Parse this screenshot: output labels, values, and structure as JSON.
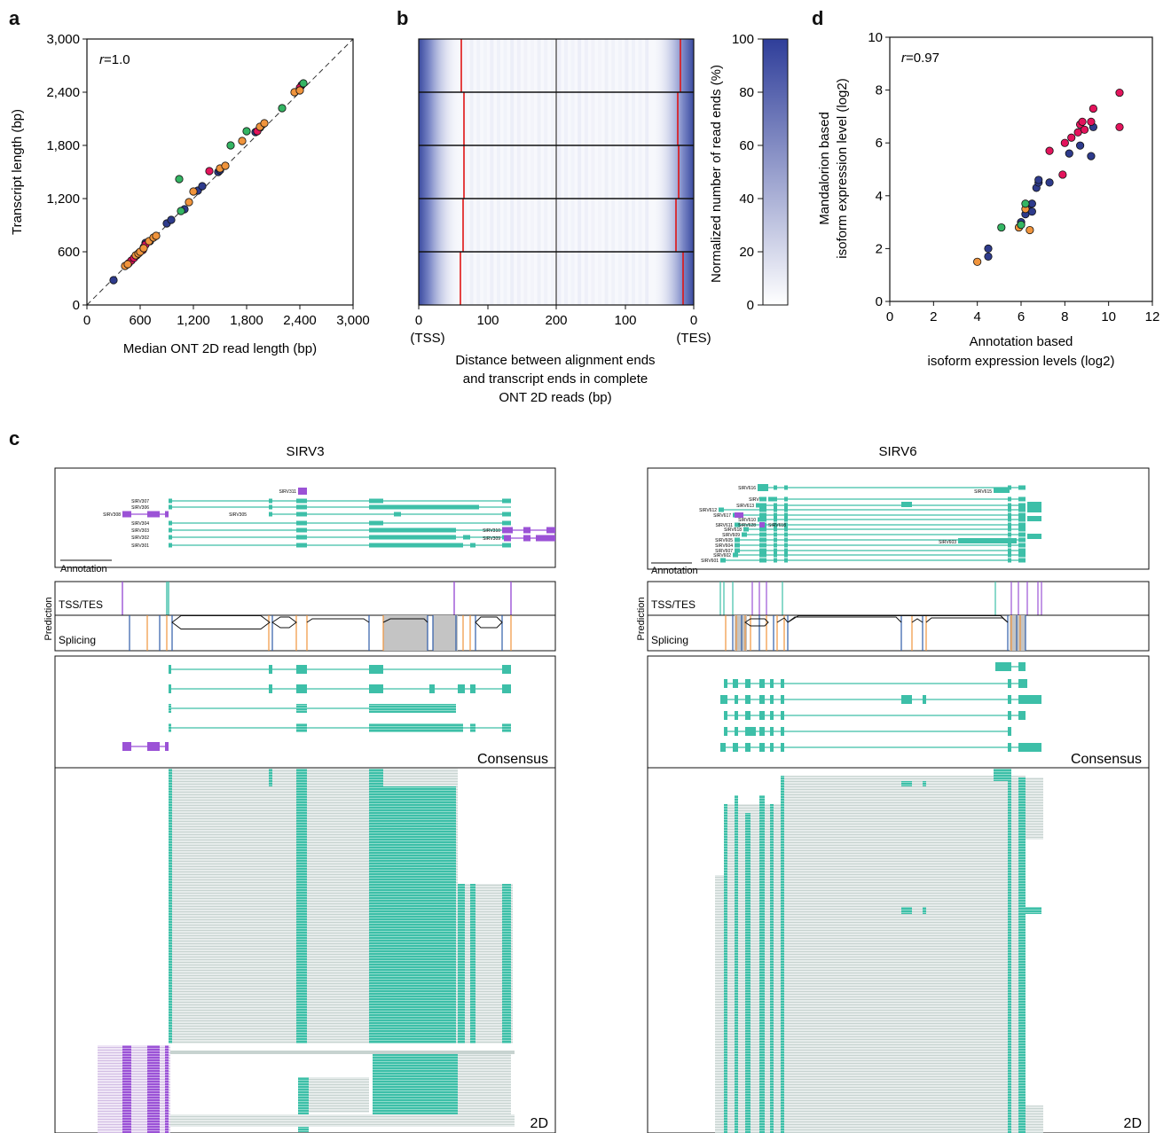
{
  "panels": {
    "a": "a",
    "b": "b",
    "c": "c",
    "d": "d"
  },
  "colors": {
    "teal": "#3dbfa8",
    "purple": "#9b52d6",
    "navy": "#2e3b8c",
    "pink": "#e3145c",
    "orange": "#f0943c",
    "green": "#34b563",
    "red": "#e01414",
    "blue_heat": "#3a4aa0",
    "read_gray": "#cfd9d6"
  },
  "chart_data": [
    {
      "type": "scatter",
      "id": "a",
      "annotation": "r=1.0",
      "r_label": "r",
      "r_value": "=1.0",
      "xlabel": "Median ONT 2D read length (bp)",
      "ylabel": "Transcript length (bp)",
      "xlim": [
        0,
        3000
      ],
      "ylim": [
        0,
        3000
      ],
      "xticks": [
        "0",
        "600",
        "1,200",
        "1,800",
        "2,400",
        "3,000"
      ],
      "yticks": [
        "0",
        "600",
        "1,200",
        "1,800",
        "2,400",
        "3,000"
      ],
      "tick_values": [
        0,
        600,
        1200,
        1800,
        2400,
        3000
      ],
      "diagonal": true,
      "series": [
        {
          "color_key": "navy",
          "points": [
            [
              300,
              280
            ],
            [
              640,
              650
            ],
            [
              660,
              700
            ],
            [
              710,
              720
            ],
            [
              900,
              920
            ],
            [
              950,
              960
            ],
            [
              1100,
              1080
            ],
            [
              1250,
              1290
            ],
            [
              1300,
              1340
            ],
            [
              1480,
              1500
            ],
            [
              1500,
              1520
            ],
            [
              1900,
              1950
            ],
            [
              1950,
              2000
            ],
            [
              2420,
              2480
            ]
          ]
        },
        {
          "color_key": "pink",
          "points": [
            [
              470,
              470
            ],
            [
              500,
              500
            ],
            [
              530,
              530
            ],
            [
              560,
              560
            ],
            [
              590,
              590
            ],
            [
              630,
              620
            ],
            [
              660,
              680
            ],
            [
              1380,
              1510
            ],
            [
              1920,
              1960
            ],
            [
              2400,
              2450
            ]
          ]
        },
        {
          "color_key": "orange",
          "points": [
            [
              430,
              440
            ],
            [
              460,
              460
            ],
            [
              550,
              560
            ],
            [
              580,
              580
            ],
            [
              600,
              600
            ],
            [
              640,
              640
            ],
            [
              700,
              720
            ],
            [
              750,
              760
            ],
            [
              780,
              780
            ],
            [
              1150,
              1160
            ],
            [
              1200,
              1280
            ],
            [
              1500,
              1540
            ],
            [
              1560,
              1570
            ],
            [
              1750,
              1850
            ],
            [
              1950,
              2010
            ],
            [
              2000,
              2050
            ],
            [
              2340,
              2400
            ],
            [
              2400,
              2420
            ]
          ]
        },
        {
          "color_key": "green",
          "points": [
            [
              1060,
              1060
            ],
            [
              1040,
              1420
            ],
            [
              1620,
              1800
            ],
            [
              1800,
              1960
            ],
            [
              2200,
              2220
            ],
            [
              2440,
              2500
            ]
          ]
        }
      ]
    },
    {
      "type": "heatmap",
      "id": "b",
      "xlabel_lines": [
        "Distance between alignment ends",
        "and transcript ends in complete",
        "ONT 2D reads (bp)"
      ],
      "xticks": [
        "0",
        "100",
        "200",
        "100",
        "0"
      ],
      "xtick_sub": [
        "(TSS)",
        "(TES)"
      ],
      "colorbar_label": "Normalized number of read ends (%)",
      "colorbar_ticks": [
        "0",
        "20",
        "40",
        "60",
        "80",
        "100"
      ],
      "rows": 5
    },
    {
      "type": "scatter",
      "id": "d",
      "annotation": "r=0.97",
      "r_label": "r",
      "r_value": "=0.97",
      "xlabel_lines": [
        "Annotation based",
        "isoform expression levels (log2)"
      ],
      "ylabel_lines": [
        "Mandalorion based",
        "isoform expression level (log2)"
      ],
      "xlim": [
        0,
        12
      ],
      "ylim": [
        0,
        10
      ],
      "xticks": [
        "0",
        "2",
        "4",
        "6",
        "8",
        "10",
        "12"
      ],
      "yticks": [
        "0",
        "2",
        "4",
        "6",
        "8",
        "10"
      ],
      "series": [
        {
          "color_key": "navy",
          "points": [
            [
              4.5,
              2.0
            ],
            [
              4.5,
              1.7
            ],
            [
              6.0,
              3.0
            ],
            [
              6.2,
              3.3
            ],
            [
              6.3,
              3.6
            ],
            [
              6.5,
              3.7
            ],
            [
              6.7,
              4.3
            ],
            [
              6.8,
              4.5
            ],
            [
              6.8,
              4.6
            ],
            [
              7.3,
              4.5
            ],
            [
              8.2,
              5.6
            ],
            [
              8.7,
              5.9
            ],
            [
              9.2,
              5.5
            ],
            [
              9.3,
              6.6
            ],
            [
              6.5,
              3.4
            ]
          ]
        },
        {
          "color_key": "pink",
          "points": [
            [
              7.3,
              5.7
            ],
            [
              7.9,
              4.8
            ],
            [
              8.3,
              6.2
            ],
            [
              8.6,
              6.4
            ],
            [
              8.7,
              6.7
            ],
            [
              8.8,
              6.8
            ],
            [
              8.9,
              6.5
            ],
            [
              9.2,
              6.8
            ],
            [
              9.3,
              7.3
            ],
            [
              10.5,
              7.9
            ],
            [
              10.5,
              6.6
            ],
            [
              8.0,
              6.0
            ]
          ]
        },
        {
          "color_key": "orange",
          "points": [
            [
              4.0,
              1.5
            ],
            [
              5.9,
              2.8
            ],
            [
              6.2,
              3.5
            ],
            [
              6.4,
              2.7
            ]
          ]
        },
        {
          "color_key": "green",
          "points": [
            [
              5.1,
              2.8
            ],
            [
              6.2,
              3.7
            ],
            [
              6.0,
              2.9
            ]
          ]
        }
      ]
    }
  ],
  "panel_c": {
    "left": {
      "title": "SIRV3",
      "annotation_label": "Annotation",
      "isoforms": [
        "SIRV307",
        "SIRV306",
        "SIRV305",
        "SIRV304",
        "SIRV303",
        "SIRV302",
        "SIRV301",
        "SIRV311",
        "SIRV308",
        "SIRV310",
        "SIRV309"
      ],
      "tss_label": "TSS/TES",
      "splicing_label": "Splicing",
      "prediction_label": "Prediction",
      "consensus_label": "Consensus",
      "reads_label": "2D"
    },
    "right": {
      "title": "SIRV6",
      "annotation_label": "Annotation",
      "isoforms": [
        "SIRV616",
        "SIRV615",
        "SIRV614",
        "SIRV613",
        "SIRV612",
        "SIRV617",
        "SIRV610",
        "SIRV611",
        "SIRV618",
        "SIRV628",
        "SIRV609",
        "SIRV605",
        "SIRV604",
        "SIRV607",
        "SIRV602",
        "SIRV601",
        "SIRV603"
      ],
      "tss_label": "TSS/TES",
      "splicing_label": "Splicing",
      "prediction_label": "Prediction",
      "consensus_label": "Consensus",
      "reads_label": "2D"
    }
  }
}
